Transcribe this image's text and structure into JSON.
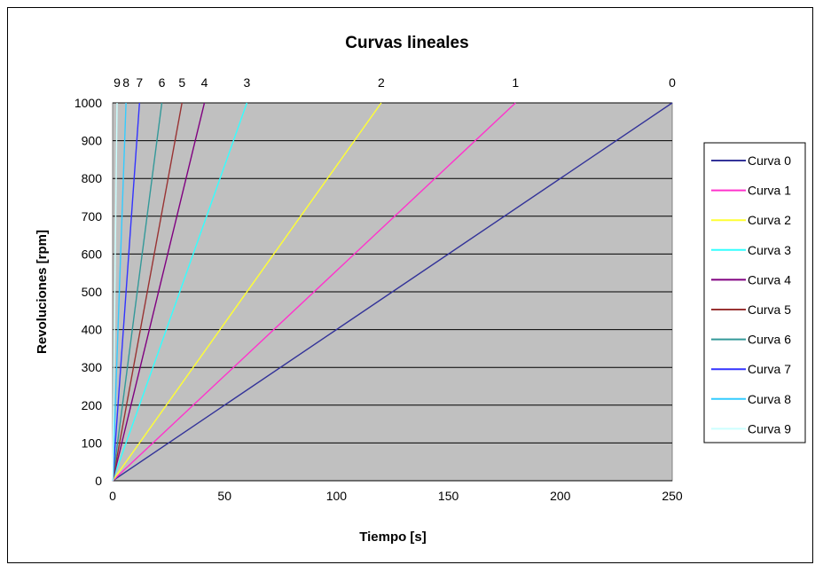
{
  "chart_data": {
    "type": "line",
    "title": "Curvas lineales",
    "xlabel": "Tiempo [s]",
    "ylabel": "Revoluciones [rpm]",
    "xlim": [
      0,
      250
    ],
    "ylim": [
      0,
      1000
    ],
    "x_ticks": [
      "0",
      "50",
      "100",
      "150",
      "200",
      "250"
    ],
    "y_ticks": [
      "0",
      "100",
      "200",
      "300",
      "400",
      "500",
      "600",
      "700",
      "800",
      "900",
      "1000"
    ],
    "grid": "horizontal",
    "legend": "right",
    "plot_background": "#c0c0c0",
    "series": [
      {
        "name": "Curva 0",
        "label": "0",
        "color": "#333399",
        "points": [
          [
            0,
            0
          ],
          [
            250,
            1000
          ]
        ]
      },
      {
        "name": "Curva 1",
        "label": "1",
        "color": "#ff33cc",
        "points": [
          [
            0,
            0
          ],
          [
            180,
            1000
          ]
        ]
      },
      {
        "name": "Curva 2",
        "label": "2",
        "color": "#ffff33",
        "points": [
          [
            0,
            0
          ],
          [
            120,
            1000
          ]
        ]
      },
      {
        "name": "Curva 3",
        "label": "3",
        "color": "#33ffff",
        "points": [
          [
            0,
            0
          ],
          [
            60,
            1000
          ]
        ]
      },
      {
        "name": "Curva 4",
        "label": "4",
        "color": "#800080",
        "points": [
          [
            0,
            0
          ],
          [
            41,
            1000
          ]
        ]
      },
      {
        "name": "Curva 5",
        "label": "5",
        "color": "#993333",
        "points": [
          [
            0,
            0
          ],
          [
            31,
            1000
          ]
        ]
      },
      {
        "name": "Curva 6",
        "label": "6",
        "color": "#339999",
        "points": [
          [
            0,
            0
          ],
          [
            22,
            1000
          ]
        ]
      },
      {
        "name": "Curva 7",
        "label": "7",
        "color": "#3333ff",
        "points": [
          [
            0,
            0
          ],
          [
            12,
            1000
          ]
        ]
      },
      {
        "name": "Curva 8",
        "label": "8",
        "color": "#33ccff",
        "points": [
          [
            0,
            0
          ],
          [
            6,
            1000
          ]
        ]
      },
      {
        "name": "Curva 9",
        "label": "9",
        "color": "#ccffff",
        "points": [
          [
            0,
            0
          ],
          [
            2,
            1000
          ]
        ]
      }
    ]
  }
}
